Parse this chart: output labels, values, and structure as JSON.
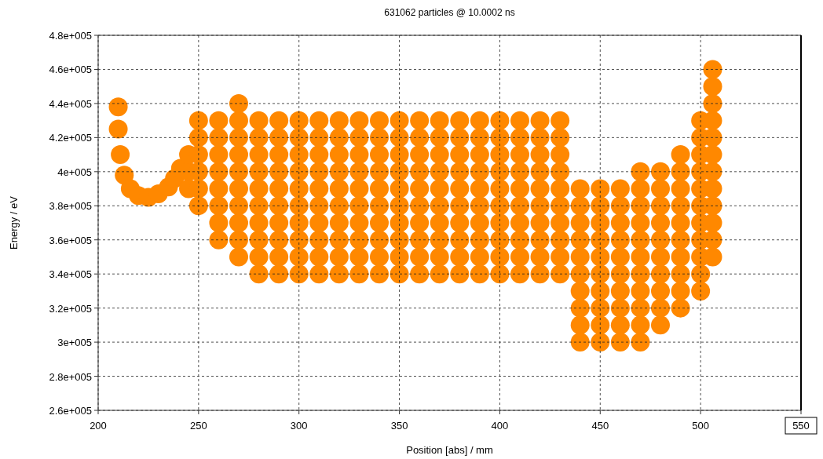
{
  "chart_data": {
    "type": "scatter",
    "title": "631062 particles @ 10.0002 ns",
    "xlabel": "Position [abs]  / mm",
    "ylabel": "Energy / eV",
    "xlim": [
      200,
      550
    ],
    "xticks": [
      200,
      250,
      300,
      350,
      400,
      450,
      500,
      550
    ],
    "ylim": [
      260000,
      480000
    ],
    "yticks": [
      {
        "value": 260000,
        "label": "2.6e+005"
      },
      {
        "value": 280000,
        "label": "2.8e+005"
      },
      {
        "value": 300000,
        "label": "3e+005"
      },
      {
        "value": 320000,
        "label": "3.2e+005"
      },
      {
        "value": 340000,
        "label": "3.4e+005"
      },
      {
        "value": 360000,
        "label": "3.6e+005"
      },
      {
        "value": 380000,
        "label": "3.8e+005"
      },
      {
        "value": 400000,
        "label": "4e+005"
      },
      {
        "value": 420000,
        "label": "4.2e+005"
      },
      {
        "value": 440000,
        "label": "4.4e+005"
      },
      {
        "value": 460000,
        "label": "4.6e+005"
      },
      {
        "value": 480000,
        "label": "4.8e+005"
      }
    ],
    "grid": true,
    "marker": "circle",
    "series": [
      {
        "color": "#ff8800",
        "x": [
          210,
          210,
          211,
          213,
          216,
          220,
          225,
          230,
          235,
          238,
          241,
          245,
          245,
          245,
          250,
          250,
          250,
          250,
          250,
          250,
          260,
          260,
          260,
          260,
          260,
          260,
          260,
          260,
          270,
          270,
          270,
          270,
          270,
          270,
          270,
          270,
          270,
          270,
          280,
          280,
          280,
          280,
          280,
          280,
          280,
          280,
          280,
          280,
          290,
          290,
          290,
          290,
          290,
          290,
          290,
          290,
          290,
          290,
          300,
          300,
          300,
          300,
          300,
          300,
          300,
          300,
          300,
          300,
          310,
          310,
          310,
          310,
          310,
          310,
          310,
          310,
          310,
          310,
          320,
          320,
          320,
          320,
          320,
          320,
          320,
          320,
          320,
          320,
          330,
          330,
          330,
          330,
          330,
          330,
          330,
          330,
          330,
          330,
          340,
          340,
          340,
          340,
          340,
          340,
          340,
          340,
          340,
          340,
          350,
          350,
          350,
          350,
          350,
          350,
          350,
          350,
          350,
          350,
          360,
          360,
          360,
          360,
          360,
          360,
          360,
          360,
          360,
          360,
          370,
          370,
          370,
          370,
          370,
          370,
          370,
          370,
          370,
          370,
          380,
          380,
          380,
          380,
          380,
          380,
          380,
          380,
          380,
          380,
          390,
          390,
          390,
          390,
          390,
          390,
          390,
          390,
          390,
          390,
          400,
          400,
          400,
          400,
          400,
          400,
          400,
          400,
          400,
          400,
          410,
          410,
          410,
          410,
          410,
          410,
          410,
          410,
          410,
          410,
          420,
          420,
          420,
          420,
          420,
          420,
          420,
          420,
          420,
          420,
          430,
          430,
          430,
          430,
          430,
          430,
          430,
          430,
          430,
          430,
          440,
          440,
          440,
          440,
          440,
          440,
          440,
          440,
          440,
          440,
          450,
          450,
          450,
          450,
          450,
          450,
          450,
          450,
          450,
          450,
          460,
          460,
          460,
          460,
          460,
          460,
          460,
          460,
          460,
          460,
          470,
          470,
          470,
          470,
          470,
          470,
          470,
          470,
          470,
          470,
          470,
          480,
          480,
          480,
          480,
          480,
          480,
          480,
          480,
          480,
          480,
          490,
          490,
          490,
          490,
          490,
          490,
          490,
          490,
          490,
          490,
          500,
          500,
          500,
          500,
          500,
          500,
          500,
          500,
          500,
          500,
          500,
          506,
          506,
          506,
          506,
          506,
          506,
          506,
          506,
          506,
          506,
          506,
          506
        ],
        "values": [
          438000,
          425000,
          410000,
          398000,
          390000,
          386000,
          385000,
          387000,
          391000,
          396000,
          402000,
          390000,
          400000,
          410000,
          380000,
          390000,
          400000,
          410000,
          420000,
          430000,
          360000,
          370000,
          380000,
          390000,
          400000,
          410000,
          420000,
          430000,
          350000,
          360000,
          370000,
          380000,
          390000,
          400000,
          410000,
          420000,
          430000,
          440000,
          340000,
          350000,
          360000,
          370000,
          380000,
          390000,
          400000,
          410000,
          420000,
          430000,
          340000,
          350000,
          360000,
          370000,
          380000,
          390000,
          400000,
          410000,
          420000,
          430000,
          340000,
          350000,
          360000,
          370000,
          380000,
          390000,
          400000,
          410000,
          420000,
          430000,
          340000,
          350000,
          360000,
          370000,
          380000,
          390000,
          400000,
          410000,
          420000,
          430000,
          340000,
          350000,
          360000,
          370000,
          380000,
          390000,
          400000,
          410000,
          420000,
          430000,
          340000,
          350000,
          360000,
          370000,
          380000,
          390000,
          400000,
          410000,
          420000,
          430000,
          340000,
          350000,
          360000,
          370000,
          380000,
          390000,
          400000,
          410000,
          420000,
          430000,
          340000,
          350000,
          360000,
          370000,
          380000,
          390000,
          400000,
          410000,
          420000,
          430000,
          340000,
          350000,
          360000,
          370000,
          380000,
          390000,
          400000,
          410000,
          420000,
          430000,
          340000,
          350000,
          360000,
          370000,
          380000,
          390000,
          400000,
          410000,
          420000,
          430000,
          340000,
          350000,
          360000,
          370000,
          380000,
          390000,
          400000,
          410000,
          420000,
          430000,
          340000,
          350000,
          360000,
          370000,
          380000,
          390000,
          400000,
          410000,
          420000,
          430000,
          340000,
          350000,
          360000,
          370000,
          380000,
          390000,
          400000,
          410000,
          420000,
          430000,
          340000,
          350000,
          360000,
          370000,
          380000,
          390000,
          400000,
          410000,
          420000,
          430000,
          340000,
          350000,
          360000,
          370000,
          380000,
          390000,
          400000,
          410000,
          420000,
          430000,
          340000,
          350000,
          360000,
          370000,
          380000,
          390000,
          400000,
          410000,
          420000,
          430000,
          300000,
          310000,
          320000,
          330000,
          340000,
          350000,
          360000,
          370000,
          380000,
          390000,
          300000,
          310000,
          320000,
          330000,
          340000,
          350000,
          360000,
          370000,
          380000,
          390000,
          300000,
          310000,
          320000,
          330000,
          340000,
          350000,
          360000,
          370000,
          380000,
          390000,
          300000,
          310000,
          320000,
          330000,
          340000,
          350000,
          360000,
          370000,
          380000,
          390000,
          400000,
          310000,
          320000,
          330000,
          340000,
          350000,
          360000,
          370000,
          380000,
          390000,
          400000,
          320000,
          330000,
          340000,
          350000,
          360000,
          370000,
          380000,
          390000,
          400000,
          410000,
          330000,
          340000,
          350000,
          360000,
          370000,
          380000,
          390000,
          400000,
          410000,
          420000,
          430000,
          350000,
          360000,
          370000,
          380000,
          390000,
          400000,
          410000,
          420000,
          430000,
          440000,
          450000,
          460000
        ]
      }
    ]
  }
}
